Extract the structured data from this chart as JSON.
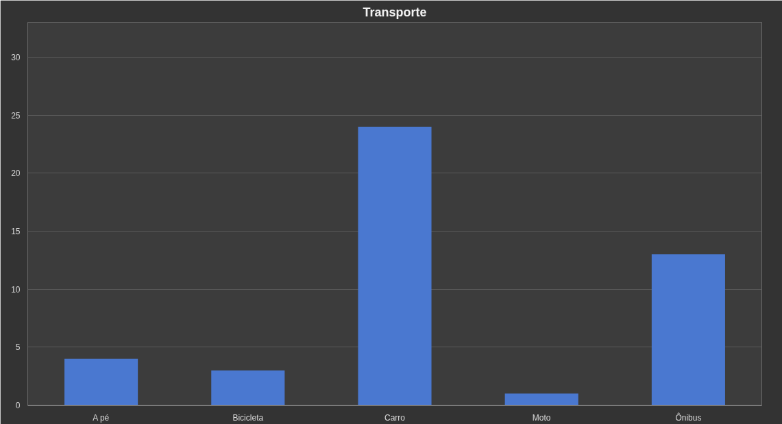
{
  "chart_data": {
    "type": "bar",
    "title": "Transporte",
    "categories": [
      "A pé",
      "Bicicleta",
      "Carro",
      "Moto",
      "Ônibus"
    ],
    "values": [
      4,
      3,
      24,
      1,
      13
    ],
    "color": "#4a78d0",
    "ylim": [
      0,
      33
    ],
    "yticks": [
      0,
      5,
      10,
      15,
      20,
      25,
      30
    ],
    "grid": "y"
  }
}
